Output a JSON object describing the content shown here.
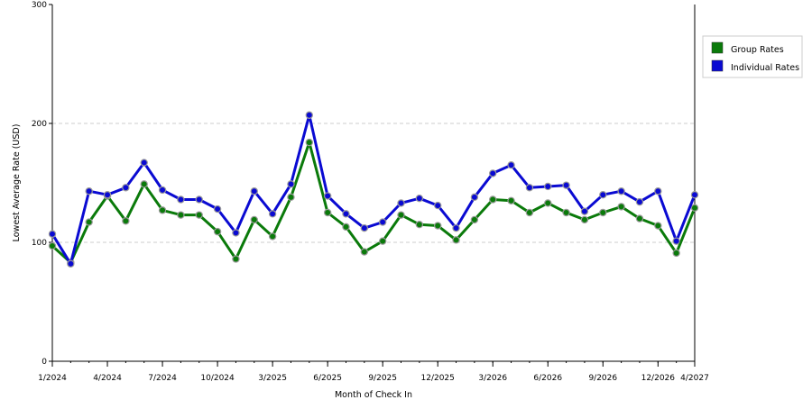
{
  "chart_data": {
    "type": "line",
    "xlabel": "Month of Check In",
    "ylabel": "Lowest Average Rate (USD)",
    "ylim": [
      0,
      300
    ],
    "yticks": [
      0,
      100,
      200,
      300
    ],
    "grid": "horizontal dashed",
    "legend_position": "right",
    "x_tick_labels": [
      "1/2024",
      "4/2024",
      "7/2024",
      "10/2024",
      "3/2025",
      "6/2025",
      "9/2025",
      "12/2025",
      "3/2026",
      "6/2026",
      "9/2026",
      "12/2026",
      "4/2027"
    ],
    "x_tick_index": [
      0,
      3,
      6,
      9,
      12,
      15,
      18,
      21,
      24,
      27,
      30,
      33,
      35
    ],
    "series": [
      {
        "name": "Group Rates",
        "color": "#0a7a0a",
        "values": [
          97,
          83,
          117,
          139,
          118,
          149,
          127,
          123,
          123,
          109,
          86,
          119,
          105,
          138,
          184,
          125,
          113,
          92,
          101,
          123,
          115,
          114,
          102,
          119,
          136,
          135,
          125,
          133,
          125,
          119,
          125,
          130,
          120,
          114,
          91,
          129
        ]
      },
      {
        "name": "Individual Rates",
        "color": "#0a0ad2",
        "values": [
          107,
          82,
          143,
          140,
          146,
          167,
          144,
          136,
          136,
          128,
          108,
          143,
          124,
          149,
          207,
          139,
          124,
          112,
          117,
          133,
          137,
          131,
          112,
          138,
          158,
          165,
          146,
          147,
          148,
          126,
          140,
          143,
          134,
          143,
          101,
          140
        ]
      }
    ]
  }
}
